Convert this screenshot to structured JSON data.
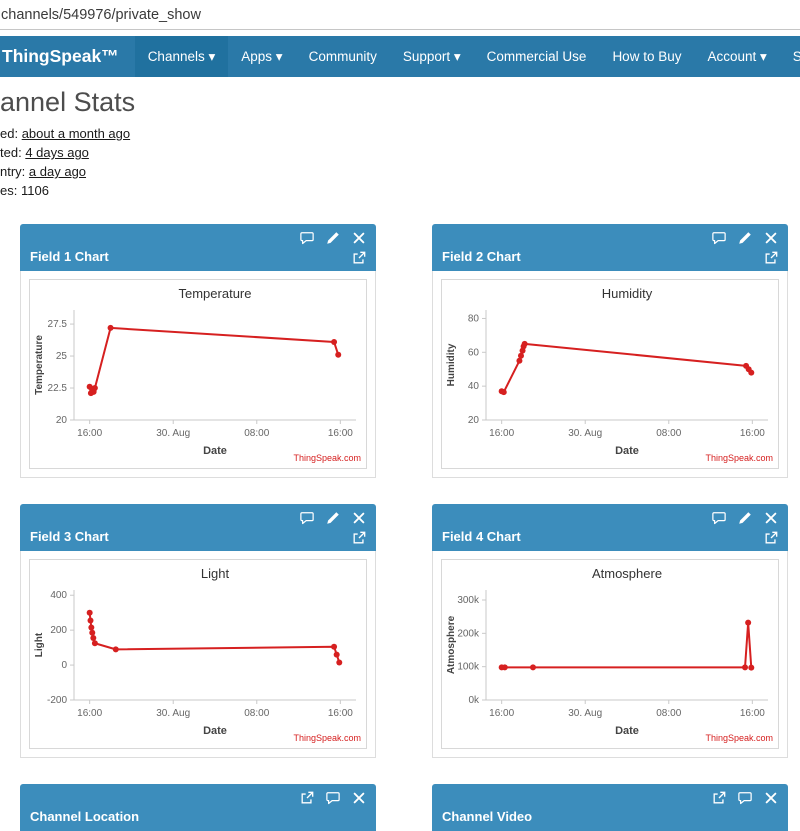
{
  "browser": {
    "url": "channels/549976/private_show"
  },
  "navbar": {
    "brand": "ThingSpeak™",
    "items": [
      {
        "label": "Channels ▾",
        "active": true
      },
      {
        "label": "Apps ▾"
      },
      {
        "label": "Community"
      },
      {
        "label": "Support ▾"
      }
    ],
    "right_items": [
      {
        "label": "Commercial Use"
      },
      {
        "label": "How to Buy"
      },
      {
        "label": "Account ▾"
      },
      {
        "label": "Si"
      }
    ]
  },
  "page": {
    "title": "annel Stats",
    "stats": [
      {
        "label": "ed:",
        "value": "about a month ago"
      },
      {
        "label": "ted:",
        "value": "4 days ago"
      },
      {
        "label": "ntry:",
        "value": "a day ago"
      },
      {
        "label": "es:",
        "value": "1106"
      }
    ]
  },
  "watermark": "ThingSpeak.com",
  "colors": {
    "navbar": "#2a79a8",
    "panel_header": "#3c8dbc",
    "line": "#d62020"
  },
  "panels": [
    {
      "title": "Field 1 Chart",
      "chart": {
        "type": "line",
        "title": "Temperature",
        "xlabel": "Date",
        "ylabel": "Temperature",
        "xlim": [
          -1.5,
          25.5
        ],
        "ylim": [
          20,
          28.6
        ],
        "xticks": [
          0,
          8,
          16,
          24
        ],
        "xtick_labels": [
          "16:00",
          "30. Aug",
          "08:00",
          "16:00"
        ],
        "yticks": [
          20,
          22.5,
          25,
          27.5
        ],
        "ytick_labels": [
          "20",
          "22.5",
          "25",
          "27.5"
        ],
        "points": [
          [
            0,
            22.6
          ],
          [
            0.12,
            22.1
          ],
          [
            0.25,
            22.4
          ],
          [
            0.38,
            22.2
          ],
          [
            0.5,
            22.5
          ],
          [
            2,
            27.2
          ],
          [
            23.4,
            26.1
          ],
          [
            23.8,
            25.1
          ]
        ]
      }
    },
    {
      "title": "Field 2 Chart",
      "chart": {
        "type": "line",
        "title": "Humidity",
        "xlabel": "Date",
        "ylabel": "Humidity",
        "xlim": [
          -1.5,
          25.5
        ],
        "ylim": [
          20,
          85
        ],
        "xticks": [
          0,
          8,
          16,
          24
        ],
        "xtick_labels": [
          "16:00",
          "30. Aug",
          "08:00",
          "16:00"
        ],
        "yticks": [
          20,
          40,
          60,
          80
        ],
        "ytick_labels": [
          "20",
          "40",
          "60",
          "80"
        ],
        "points": [
          [
            0,
            37
          ],
          [
            0.2,
            36.5
          ],
          [
            1.7,
            55
          ],
          [
            1.85,
            58
          ],
          [
            2,
            61
          ],
          [
            2.1,
            63.5
          ],
          [
            2.2,
            65
          ],
          [
            23.4,
            52
          ],
          [
            23.65,
            50
          ],
          [
            23.9,
            48
          ]
        ]
      }
    },
    {
      "title": "Field 3 Chart",
      "chart": {
        "type": "line",
        "title": "Light",
        "xlabel": "Date",
        "ylabel": "Light",
        "xlim": [
          -1.5,
          25.5
        ],
        "ylim": [
          -200,
          430
        ],
        "xticks": [
          0,
          8,
          16,
          24
        ],
        "xtick_labels": [
          "16:00",
          "30. Aug",
          "08:00",
          "16:00"
        ],
        "yticks": [
          -200,
          0,
          200,
          400
        ],
        "ytick_labels": [
          "-200",
          "0",
          "200",
          "400"
        ],
        "points": [
          [
            0,
            300
          ],
          [
            0.08,
            255
          ],
          [
            0.16,
            215
          ],
          [
            0.25,
            185
          ],
          [
            0.35,
            155
          ],
          [
            0.5,
            125
          ],
          [
            2.5,
            90
          ],
          [
            23.4,
            105
          ],
          [
            23.65,
            60
          ],
          [
            23.9,
            15
          ]
        ]
      }
    },
    {
      "title": "Field 4 Chart",
      "chart": {
        "type": "line",
        "title": "Atmosphere",
        "xlabel": "Date",
        "ylabel": "Atmosphere",
        "xlim": [
          -1.5,
          25.5
        ],
        "ylim": [
          0,
          330
        ],
        "xticks": [
          0,
          8,
          16,
          24
        ],
        "xtick_labels": [
          "16:00",
          "30. Aug",
          "08:00",
          "16:00"
        ],
        "yticks": [
          0,
          100,
          200,
          300
        ],
        "ytick_labels": [
          "0k",
          "100k",
          "200k",
          "300k"
        ],
        "points": [
          [
            0,
            98
          ],
          [
            0.3,
            98
          ],
          [
            3,
            98
          ],
          [
            23.3,
            98
          ],
          [
            23.6,
            232
          ],
          [
            23.9,
            97
          ]
        ]
      }
    }
  ],
  "bottom_panels": [
    {
      "title": "Channel Location"
    },
    {
      "title": "Channel Video"
    }
  ]
}
